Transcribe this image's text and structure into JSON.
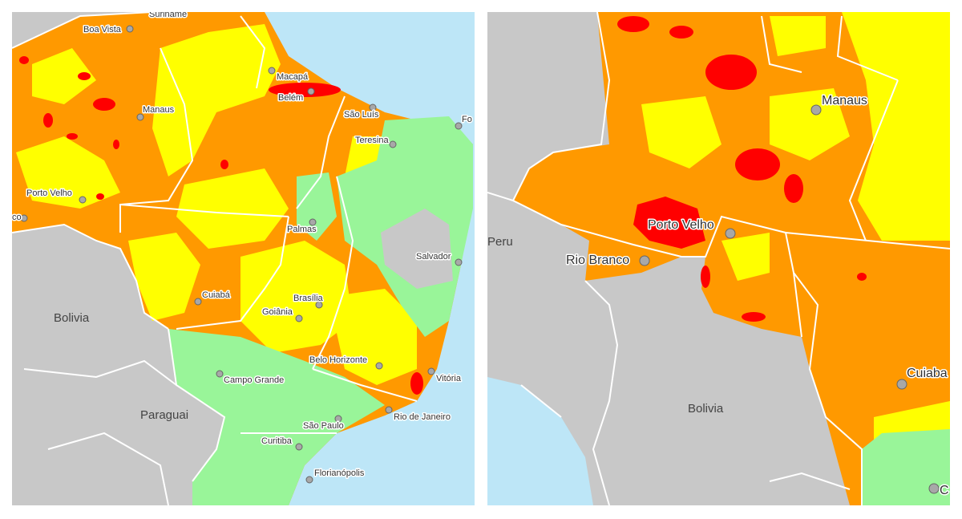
{
  "left_map": {
    "labels": [
      "Suriname",
      "Boa Vista",
      "Macapá",
      "Belém",
      "Manaus",
      "São Luís",
      "Fo",
      "Teresina",
      "Porto Velho",
      "co",
      "Palmas",
      "Salvador",
      "Bolivia",
      "Cuiabá",
      "Brasília",
      "Goiânia",
      "Belo Horizonte",
      "Vitória",
      "Campo Grande",
      "Paraguai",
      "São Paulo",
      "Rio de Janeiro",
      "Curitiba",
      "Florianópolis"
    ]
  },
  "right_map": {
    "labels": [
      "Peru",
      "Manaus",
      "Porto Velho",
      "Rio Branco",
      "Bolivia",
      "Cuiaba",
      "C"
    ]
  }
}
